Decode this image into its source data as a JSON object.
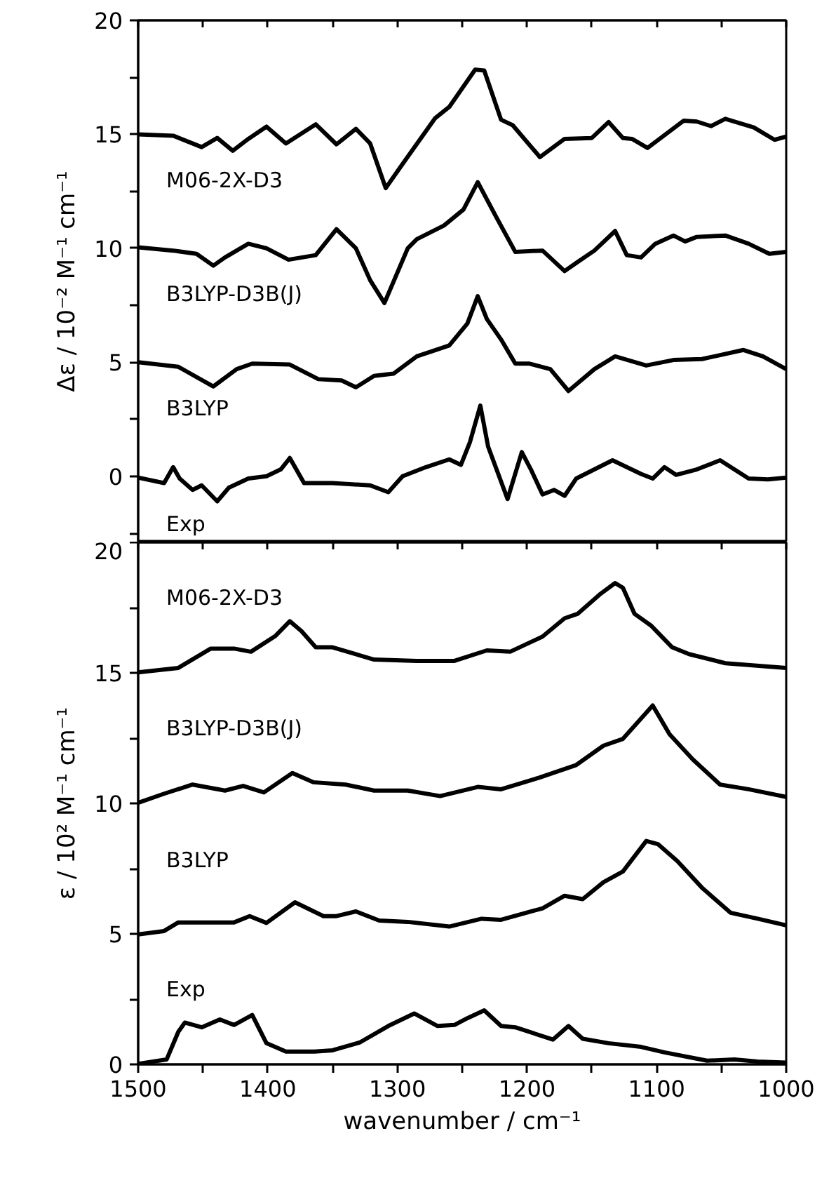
{
  "chart_data": [
    {
      "type": "line",
      "ylabel": "Δε / 10⁻² M⁻¹ cm⁻¹",
      "xlim": [
        1500,
        1000
      ],
      "ylim": [
        -2.9,
        20
      ],
      "xticks": [
        1500,
        {
          "value": 1450,
          "label": null
        },
        1400,
        {
          "value": 1350,
          "label": null
        },
        1300,
        {
          "value": 1250,
          "label": null
        },
        1200,
        {
          "value": 1150,
          "label": null
        },
        1100,
        {
          "value": 1050,
          "label": null
        },
        1000
      ],
      "yticks": [
        {
          "value": -2.5,
          "label": null
        },
        0,
        {
          "value": 2.5,
          "label": null
        },
        5,
        {
          "value": 7.5,
          "label": null
        },
        10,
        {
          "value": 12.5,
          "label": null
        },
        15,
        {
          "value": 17.5,
          "label": null
        },
        20
      ],
      "tick_labels": "y",
      "grid": false,
      "marker": "none",
      "line_style": "solid",
      "series": [
        {
          "name": "M06-2X-D3",
          "color": "#000000",
          "x": [
            1500,
            1473,
            1451,
            1439,
            1427,
            1415,
            1401,
            1386,
            1363,
            1347,
            1332,
            1321,
            1309,
            1296,
            1271,
            1260,
            1240,
            1233,
            1220,
            1211,
            1190,
            1171,
            1150,
            1137,
            1126,
            1119,
            1107,
            1079,
            1069,
            1058,
            1047,
            1025,
            1009,
            1000
          ],
          "values": [
            15.0,
            14.94,
            14.44,
            14.84,
            14.28,
            14.8,
            15.34,
            14.6,
            15.44,
            14.56,
            15.24,
            14.6,
            12.64,
            13.7,
            15.7,
            16.2,
            17.84,
            17.8,
            15.64,
            15.4,
            14.0,
            14.8,
            14.84,
            15.54,
            14.84,
            14.8,
            14.4,
            15.6,
            15.56,
            15.36,
            15.68,
            15.3,
            14.76,
            14.9
          ]
        },
        {
          "name": "B3LYP-D3B(J)",
          "color": "#000000",
          "x": [
            1500,
            1473,
            1455,
            1442,
            1433,
            1415,
            1401,
            1384,
            1363,
            1347,
            1332,
            1321,
            1310,
            1292,
            1285,
            1264,
            1249,
            1238,
            1224,
            1209,
            1188,
            1171,
            1162,
            1148,
            1132,
            1123,
            1112,
            1101,
            1087,
            1078,
            1069,
            1047,
            1029,
            1013,
            1000
          ],
          "values": [
            10.04,
            9.9,
            9.76,
            9.24,
            9.6,
            10.2,
            10.0,
            9.5,
            9.7,
            10.84,
            10.0,
            8.6,
            7.6,
            10.0,
            10.4,
            11.0,
            11.7,
            12.9,
            11.4,
            9.84,
            9.9,
            9.0,
            9.36,
            9.9,
            10.76,
            9.7,
            9.6,
            10.2,
            10.56,
            10.3,
            10.5,
            10.56,
            10.2,
            9.76,
            9.84
          ]
        },
        {
          "name": "B3LYP",
          "color": "#000000",
          "x": [
            1500,
            1469,
            1442,
            1424,
            1412,
            1383,
            1361,
            1343,
            1332,
            1318,
            1303,
            1285,
            1260,
            1246,
            1238,
            1231,
            1220,
            1209,
            1198,
            1182,
            1168,
            1148,
            1132,
            1108,
            1087,
            1065,
            1033,
            1018,
            1000
          ],
          "values": [
            5.0,
            4.8,
            3.94,
            4.7,
            4.94,
            4.9,
            4.26,
            4.2,
            3.9,
            4.4,
            4.5,
            5.26,
            5.74,
            6.7,
            7.9,
            6.9,
            6.0,
            4.94,
            4.94,
            4.7,
            3.74,
            4.7,
            5.26,
            4.86,
            5.1,
            5.14,
            5.54,
            5.26,
            4.7
          ]
        },
        {
          "name": "Exp",
          "color": "#000000",
          "x": [
            1500,
            1480,
            1473,
            1468,
            1458,
            1451,
            1439,
            1430,
            1415,
            1401,
            1390,
            1383,
            1372,
            1350,
            1321,
            1307,
            1296,
            1278,
            1260,
            1251,
            1244,
            1236,
            1230,
            1215,
            1204,
            1197,
            1188,
            1179,
            1171,
            1162,
            1148,
            1134,
            1112,
            1103,
            1094,
            1085,
            1069,
            1051,
            1040,
            1029,
            1014,
            1000
          ],
          "values": [
            -0.06,
            -0.3,
            0.4,
            -0.1,
            -0.6,
            -0.4,
            -1.1,
            -0.5,
            -0.1,
            0.0,
            0.3,
            0.8,
            -0.3,
            -0.3,
            -0.4,
            -0.7,
            0.0,
            0.4,
            0.74,
            0.5,
            1.5,
            3.1,
            1.3,
            -1.0,
            1.06,
            0.3,
            -0.8,
            -0.6,
            -0.86,
            -0.1,
            0.3,
            0.7,
            0.1,
            -0.1,
            0.4,
            0.06,
            0.3,
            0.7,
            0.3,
            -0.1,
            -0.14,
            -0.06
          ]
        }
      ]
    },
    {
      "type": "line",
      "xlabel": "wavenumber / cm⁻¹",
      "ylabel": "ε / 10² M⁻¹ cm⁻¹",
      "xlim": [
        1500,
        1000
      ],
      "ylim": [
        0,
        20
      ],
      "xticks": [
        1500,
        {
          "value": 1450,
          "label": null
        },
        1400,
        {
          "value": 1350,
          "label": null
        },
        1300,
        {
          "value": 1250,
          "label": null
        },
        1200,
        {
          "value": 1150,
          "label": null
        },
        1100,
        {
          "value": 1050,
          "label": null
        },
        1000
      ],
      "yticks": [
        0,
        {
          "value": 2.5,
          "label": null
        },
        5,
        {
          "value": 7.5,
          "label": null
        },
        10,
        {
          "value": 12.5,
          "label": null
        },
        15,
        {
          "value": 17.5,
          "label": null
        },
        20
      ],
      "grid": false,
      "marker": "none",
      "line_style": "solid",
      "series": [
        {
          "name": "M06-2X-D3",
          "color": "#000000",
          "x": [
            1500,
            1469,
            1444,
            1426,
            1413,
            1394,
            1383,
            1374,
            1363,
            1350,
            1318,
            1285,
            1256,
            1231,
            1213,
            1188,
            1171,
            1161,
            1144,
            1132,
            1126,
            1117,
            1104,
            1088,
            1075,
            1047,
            1000
          ],
          "values": [
            15.02,
            15.19,
            15.93,
            15.93,
            15.81,
            16.42,
            16.98,
            16.6,
            15.98,
            15.98,
            15.51,
            15.46,
            15.46,
            15.86,
            15.81,
            16.39,
            17.09,
            17.26,
            18.0,
            18.44,
            18.26,
            17.26,
            16.8,
            15.98,
            15.72,
            15.37,
            15.19
          ]
        },
        {
          "name": "B3LYP-D3B(J)",
          "color": "#000000",
          "x": [
            1500,
            1480,
            1458,
            1433,
            1419,
            1403,
            1381,
            1365,
            1340,
            1318,
            1292,
            1267,
            1238,
            1220,
            1191,
            1162,
            1141,
            1126,
            1103,
            1090,
            1072,
            1051,
            1029,
            1000
          ],
          "values": [
            10.02,
            10.37,
            10.72,
            10.49,
            10.67,
            10.42,
            11.16,
            10.81,
            10.72,
            10.49,
            10.49,
            10.28,
            10.63,
            10.54,
            10.98,
            11.47,
            12.21,
            12.47,
            13.75,
            12.65,
            11.68,
            10.72,
            10.54,
            10.25
          ]
        },
        {
          "name": "B3LYP",
          "color": "#000000",
          "x": [
            1500,
            1480,
            1469,
            1426,
            1414,
            1401,
            1379,
            1357,
            1347,
            1332,
            1314,
            1292,
            1260,
            1235,
            1220,
            1188,
            1171,
            1157,
            1141,
            1126,
            1108,
            1099,
            1084,
            1065,
            1043,
            1022,
            1000
          ],
          "values": [
            4.98,
            5.11,
            5.44,
            5.44,
            5.68,
            5.42,
            6.21,
            5.68,
            5.68,
            5.86,
            5.51,
            5.46,
            5.28,
            5.58,
            5.54,
            5.98,
            6.46,
            6.33,
            6.98,
            7.39,
            8.56,
            8.44,
            7.79,
            6.77,
            5.81,
            5.58,
            5.33
          ]
        },
        {
          "name": "Exp",
          "color": "#000000",
          "x": [
            1500,
            1478,
            1469,
            1464,
            1451,
            1437,
            1426,
            1412,
            1401,
            1386,
            1364,
            1350,
            1329,
            1307,
            1287,
            1269,
            1256,
            1246,
            1233,
            1220,
            1209,
            1180,
            1168,
            1157,
            1137,
            1112,
            1094,
            1061,
            1040,
            1022,
            1000
          ],
          "values": [
            0.02,
            0.19,
            1.25,
            1.6,
            1.42,
            1.72,
            1.51,
            1.89,
            0.81,
            0.49,
            0.49,
            0.54,
            0.84,
            1.47,
            1.95,
            1.47,
            1.51,
            1.77,
            2.07,
            1.47,
            1.42,
            0.95,
            1.47,
            0.98,
            0.81,
            0.67,
            0.46,
            0.14,
            0.19,
            0.11,
            0.07
          ]
        }
      ]
    }
  ]
}
